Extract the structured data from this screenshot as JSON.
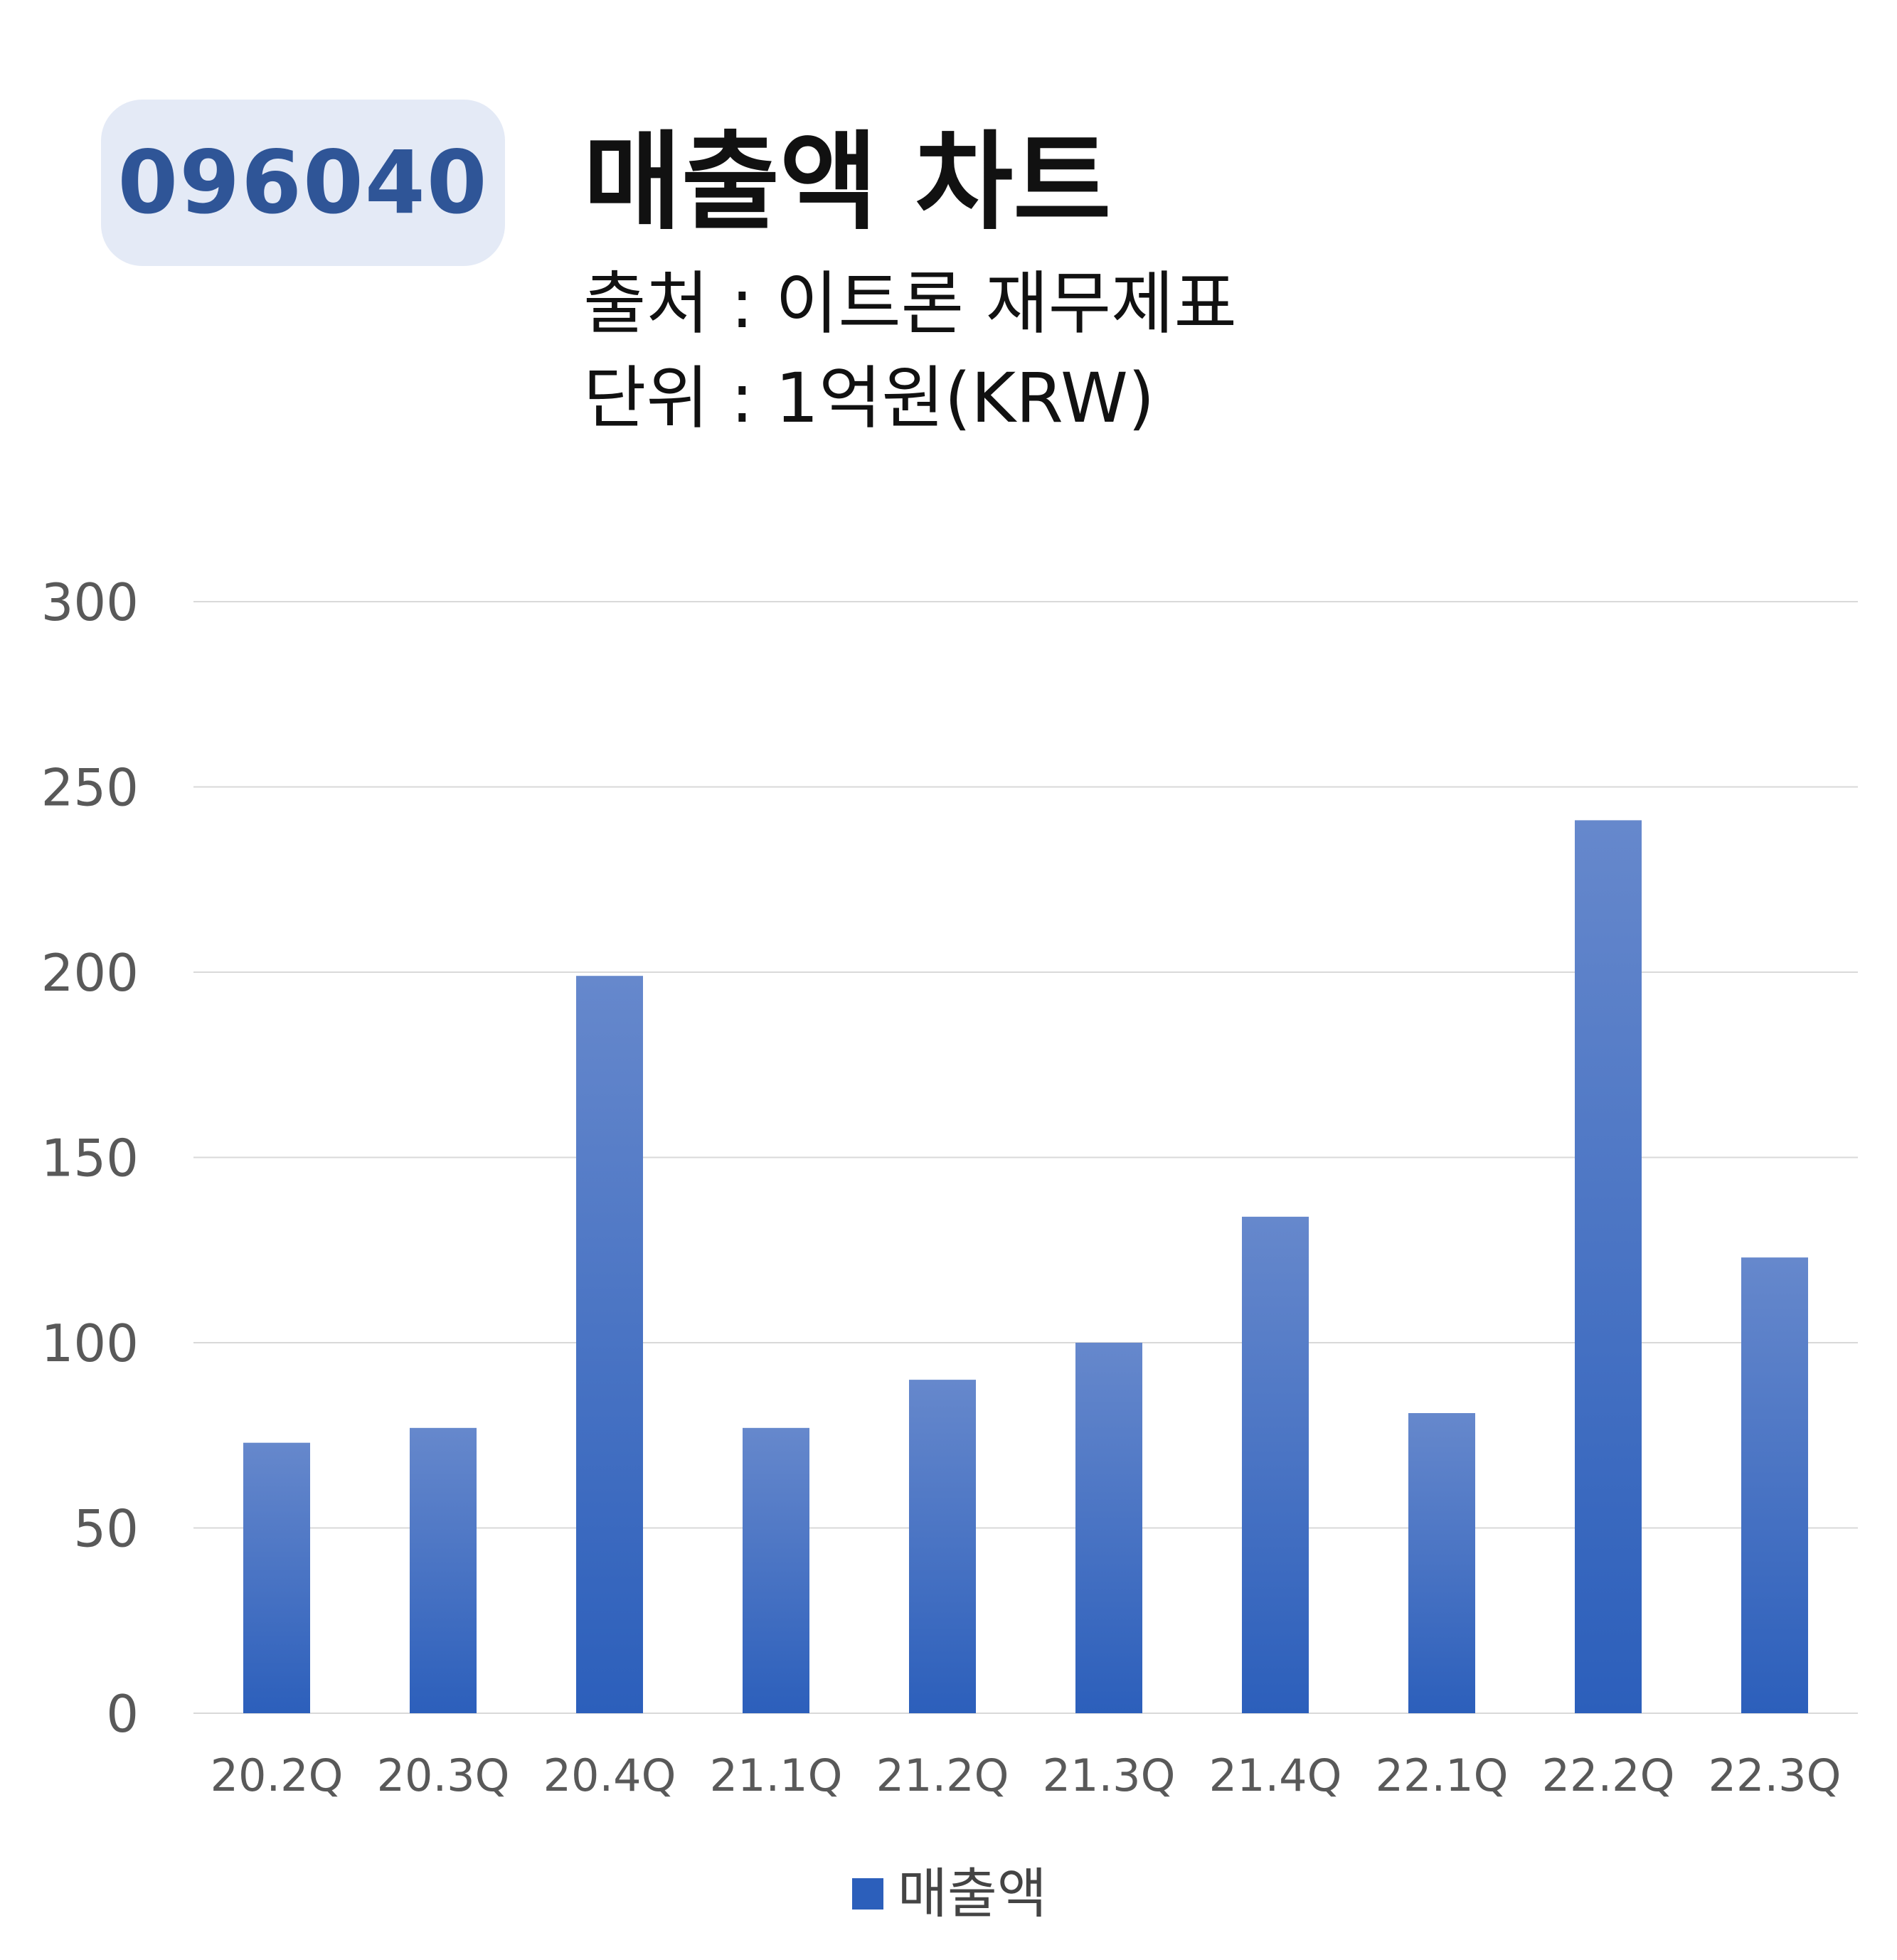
{
  "header": {
    "code": "096040",
    "title": "매출액 차트",
    "source": "출처 : 이트론 재무제표",
    "unit": "단위 : 1억원(KRW)"
  },
  "colors": {
    "badge_bg": "#e4eaf6",
    "badge_text": "#2f5597",
    "bar_top": "#6688cc",
    "bar_bottom": "#2c5fbb",
    "grid": "#d9d9d9",
    "tick_text": "#595959"
  },
  "chart_data": {
    "type": "bar",
    "title": "",
    "xlabel": "",
    "ylabel": "",
    "categories": [
      "20.2Q",
      "20.3Q",
      "20.4Q",
      "21.1Q",
      "21.2Q",
      "21.3Q",
      "21.4Q",
      "22.1Q",
      "22.2Q",
      "22.3Q"
    ],
    "series": [
      {
        "name": "매출액",
        "values": [
          73,
          77,
          199,
          77,
          90,
          100,
          134,
          81,
          241,
          123
        ]
      }
    ],
    "ylim": [
      0,
      300
    ],
    "yticks": [
      "0",
      "50",
      "100",
      "150",
      "200",
      "250",
      "300"
    ],
    "grid": true,
    "legend": "bottom"
  }
}
